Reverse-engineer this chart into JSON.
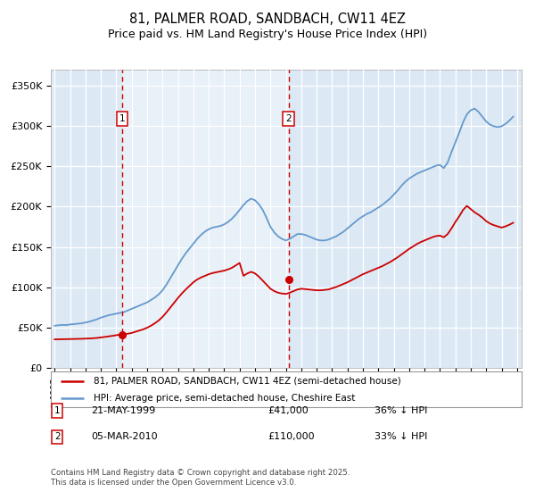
{
  "title": "81, PALMER ROAD, SANDBACH, CW11 4EZ",
  "subtitle": "Price paid vs. HM Land Registry's House Price Index (HPI)",
  "title_fontsize": 10.5,
  "subtitle_fontsize": 9,
  "ylim": [
    0,
    370000
  ],
  "yticks": [
    0,
    50000,
    100000,
    150000,
    200000,
    250000,
    300000,
    350000
  ],
  "ytick_labels": [
    "£0",
    "£50K",
    "£100K",
    "£150K",
    "£200K",
    "£250K",
    "£300K",
    "£350K"
  ],
  "background_color": "#dce9f5",
  "fig_bg": "#ffffff",
  "legend_entry1": "81, PALMER ROAD, SANDBACH, CW11 4EZ (semi-detached house)",
  "legend_entry2": "HPI: Average price, semi-detached house, Cheshire East",
  "footer": "Contains HM Land Registry data © Crown copyright and database right 2025.\nThis data is licensed under the Open Government Licence v3.0.",
  "sale1_date": "21-MAY-1999",
  "sale1_price": 41000,
  "sale1_label": "36% ↓ HPI",
  "sale1_year": 1999.38,
  "sale2_date": "05-MAR-2010",
  "sale2_price": 110000,
  "sale2_label": "33% ↓ HPI",
  "sale2_year": 2010.17,
  "line_color_property": "#cc0000",
  "line_color_hpi": "#6699cc",
  "marker_color": "#cc0000",
  "vline_color": "#cc0000",
  "shade_between_color": "#e8f0f8",
  "hpi_data_years": [
    1995.0,
    1995.25,
    1995.5,
    1995.75,
    1996.0,
    1996.25,
    1996.5,
    1996.75,
    1997.0,
    1997.25,
    1997.5,
    1997.75,
    1998.0,
    1998.25,
    1998.5,
    1998.75,
    1999.0,
    1999.25,
    1999.5,
    1999.75,
    2000.0,
    2000.25,
    2000.5,
    2000.75,
    2001.0,
    2001.25,
    2001.5,
    2001.75,
    2002.0,
    2002.25,
    2002.5,
    2002.75,
    2003.0,
    2003.25,
    2003.5,
    2003.75,
    2004.0,
    2004.25,
    2004.5,
    2004.75,
    2005.0,
    2005.25,
    2005.5,
    2005.75,
    2006.0,
    2006.25,
    2006.5,
    2006.75,
    2007.0,
    2007.25,
    2007.5,
    2007.75,
    2008.0,
    2008.25,
    2008.5,
    2008.75,
    2009.0,
    2009.25,
    2009.5,
    2009.75,
    2010.0,
    2010.25,
    2010.5,
    2010.75,
    2011.0,
    2011.25,
    2011.5,
    2011.75,
    2012.0,
    2012.25,
    2012.5,
    2012.75,
    2013.0,
    2013.25,
    2013.5,
    2013.75,
    2014.0,
    2014.25,
    2014.5,
    2014.75,
    2015.0,
    2015.25,
    2015.5,
    2015.75,
    2016.0,
    2016.25,
    2016.5,
    2016.75,
    2017.0,
    2017.25,
    2017.5,
    2017.75,
    2018.0,
    2018.25,
    2018.5,
    2018.75,
    2019.0,
    2019.25,
    2019.5,
    2019.75,
    2020.0,
    2020.25,
    2020.5,
    2020.75,
    2021.0,
    2021.25,
    2021.5,
    2021.75,
    2022.0,
    2022.25,
    2022.5,
    2022.75,
    2023.0,
    2023.25,
    2023.5,
    2023.75,
    2024.0,
    2024.25,
    2024.5,
    2024.75
  ],
  "hpi_data_values": [
    52000,
    52500,
    53000,
    52800,
    53500,
    54000,
    54500,
    55000,
    56000,
    57000,
    58500,
    60000,
    62000,
    63500,
    65000,
    66000,
    67000,
    68000,
    69000,
    71000,
    73000,
    75000,
    77000,
    79000,
    81000,
    84000,
    87000,
    91000,
    96000,
    103000,
    111000,
    119000,
    127000,
    135000,
    142000,
    148000,
    154000,
    160000,
    165000,
    169000,
    172000,
    174000,
    175000,
    176000,
    178000,
    181000,
    185000,
    190000,
    196000,
    202000,
    207000,
    210000,
    208000,
    203000,
    196000,
    186000,
    175000,
    168000,
    163000,
    160000,
    158000,
    160000,
    163000,
    166000,
    166000,
    165000,
    163000,
    161000,
    159000,
    158000,
    158000,
    159000,
    161000,
    163000,
    166000,
    169000,
    173000,
    177000,
    181000,
    185000,
    188000,
    191000,
    193000,
    196000,
    199000,
    202000,
    206000,
    210000,
    215000,
    220000,
    226000,
    231000,
    235000,
    238000,
    241000,
    243000,
    245000,
    247000,
    249000,
    251000,
    252000,
    248000,
    255000,
    268000,
    280000,
    292000,
    305000,
    315000,
    320000,
    322000,
    318000,
    312000,
    306000,
    302000,
    300000,
    299000,
    300000,
    303000,
    307000,
    312000
  ],
  "prop_data_years": [
    1995.0,
    1995.25,
    1995.5,
    1995.75,
    1996.0,
    1996.25,
    1996.5,
    1996.75,
    1997.0,
    1997.25,
    1997.5,
    1997.75,
    1998.0,
    1998.25,
    1998.5,
    1998.75,
    1999.0,
    1999.25,
    1999.5,
    1999.75,
    2000.0,
    2000.25,
    2000.5,
    2000.75,
    2001.0,
    2001.25,
    2001.5,
    2001.75,
    2002.0,
    2002.25,
    2002.5,
    2002.75,
    2003.0,
    2003.25,
    2003.5,
    2003.75,
    2004.0,
    2004.25,
    2004.5,
    2004.75,
    2005.0,
    2005.25,
    2005.5,
    2005.75,
    2006.0,
    2006.25,
    2006.5,
    2006.75,
    2007.0,
    2007.25,
    2007.5,
    2007.75,
    2008.0,
    2008.25,
    2008.5,
    2008.75,
    2009.0,
    2009.25,
    2009.5,
    2009.75,
    2010.0,
    2010.25,
    2010.5,
    2010.75,
    2011.0,
    2011.25,
    2011.5,
    2011.75,
    2012.0,
    2012.25,
    2012.5,
    2012.75,
    2013.0,
    2013.25,
    2013.5,
    2013.75,
    2014.0,
    2014.25,
    2014.5,
    2014.75,
    2015.0,
    2015.25,
    2015.5,
    2015.75,
    2016.0,
    2016.25,
    2016.5,
    2016.75,
    2017.0,
    2017.25,
    2017.5,
    2017.75,
    2018.0,
    2018.25,
    2018.5,
    2018.75,
    2019.0,
    2019.25,
    2019.5,
    2019.75,
    2020.0,
    2020.25,
    2020.5,
    2020.75,
    2021.0,
    2021.25,
    2021.5,
    2021.75,
    2022.0,
    2022.25,
    2022.5,
    2022.75,
    2023.0,
    2023.25,
    2023.5,
    2023.75,
    2024.0,
    2024.25,
    2024.5,
    2024.75
  ],
  "prop_data_values": [
    35000,
    35100,
    35200,
    35300,
    35400,
    35500,
    35600,
    35700,
    35900,
    36100,
    36400,
    36800,
    37400,
    38000,
    38700,
    39400,
    40200,
    41000,
    41500,
    42000,
    43000,
    44500,
    46000,
    47500,
    49500,
    52000,
    55000,
    58500,
    63000,
    68500,
    74500,
    80500,
    86500,
    92000,
    97000,
    101500,
    106000,
    109500,
    112000,
    114000,
    116000,
    117500,
    118500,
    119500,
    120500,
    122000,
    124000,
    127000,
    130000,
    114000,
    117000,
    119000,
    117000,
    113000,
    108000,
    103000,
    98000,
    95000,
    93000,
    92000,
    91500,
    93000,
    95000,
    97000,
    98000,
    97500,
    97000,
    96500,
    96000,
    96000,
    96500,
    97000,
    98500,
    100000,
    102000,
    104000,
    106000,
    108500,
    111000,
    113500,
    116000,
    118000,
    120000,
    122000,
    124000,
    126000,
    128500,
    131000,
    134000,
    137000,
    140500,
    144000,
    147500,
    150500,
    153500,
    156000,
    158000,
    160000,
    162000,
    163500,
    164000,
    162000,
    166000,
    173000,
    181000,
    188000,
    196000,
    201000,
    197000,
    193000,
    190000,
    186500,
    182000,
    179000,
    177000,
    175500,
    174000,
    175500,
    177500,
    180000
  ]
}
